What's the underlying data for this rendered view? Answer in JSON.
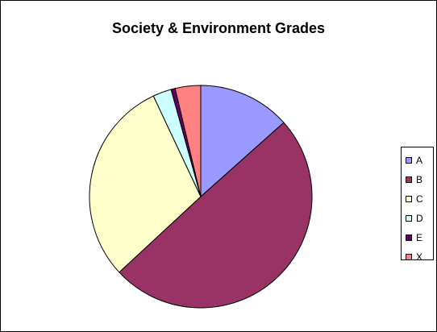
{
  "chart_data": {
    "type": "pie",
    "title": "Society & Environment Grades",
    "categories": [
      "A",
      "B",
      "C",
      "D",
      "E",
      "X"
    ],
    "values": [
      13.4,
      49.7,
      29.9,
      2.7,
      0.6,
      3.7
    ],
    "colors": [
      "#9999ff",
      "#993366",
      "#ffffcc",
      "#ccffff",
      "#660066",
      "#ff8080"
    ],
    "legend": "right"
  }
}
